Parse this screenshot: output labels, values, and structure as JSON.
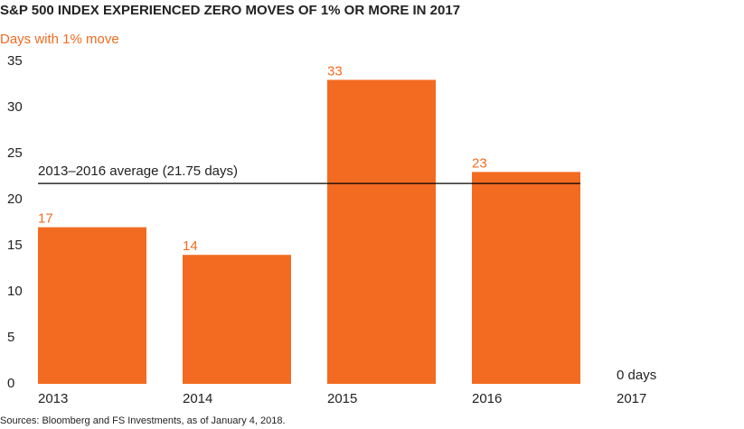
{
  "chart_data": {
    "type": "bar",
    "title": "S&P 500 INDEX EXPERIENCED ZERO MOVES OF 1% OR MORE IN 2017",
    "subtitle": "Days with 1% move",
    "categories": [
      "2013",
      "2014",
      "2015",
      "2016",
      "2017"
    ],
    "values": [
      17,
      14,
      33,
      23,
      0
    ],
    "value_labels": [
      "17",
      "14",
      "33",
      "23",
      "0 days"
    ],
    "color": "#f26b21",
    "ylim": [
      0,
      35
    ],
    "yticks": [
      0,
      5,
      10,
      15,
      20,
      25,
      30,
      35
    ],
    "grid": false,
    "annotation": {
      "text": "2013–2016 average (21.75 days)",
      "value": 21.75
    },
    "source": "Sources: Bloomberg and FS Investments, as of January 4, 2018."
  }
}
